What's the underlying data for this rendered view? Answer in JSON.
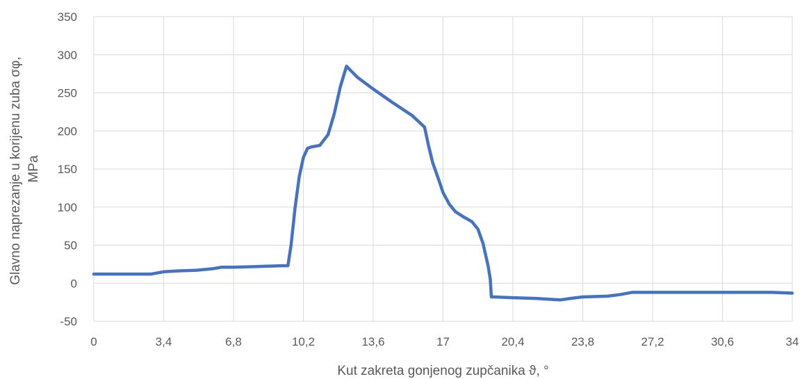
{
  "chart_data": {
    "type": "line",
    "title": "",
    "xlabel": "Kut zakreta gonjenog zupčanika ϑ, °",
    "ylabel_lines": [
      "Glavno naprezanje u korijenu zuba σφ,",
      "MPa"
    ],
    "xlim": [
      0,
      34
    ],
    "ylim": [
      -50,
      350
    ],
    "x_ticks": [
      0,
      3.4,
      6.8,
      10.2,
      13.6,
      17,
      20.4,
      23.8,
      27.2,
      30.6,
      34
    ],
    "x_tick_labels": [
      "0",
      "3,4",
      "6,8",
      "10,2",
      "13,6",
      "17",
      "20,4",
      "23,8",
      "27,2",
      "30,6",
      "34"
    ],
    "y_ticks": [
      -50,
      0,
      50,
      100,
      150,
      200,
      250,
      300,
      350
    ],
    "y_tick_labels": [
      "-50",
      "0",
      "50",
      "100",
      "150",
      "200",
      "250",
      "300",
      "350"
    ],
    "grid": true,
    "legend": "none",
    "series": [
      {
        "color": "#4472c4",
        "x": [
          0,
          1.0,
          2.0,
          2.8,
          3.4,
          4.0,
          5.0,
          5.8,
          6.2,
          6.8,
          8.0,
          9.2,
          9.45,
          9.6,
          9.8,
          10.0,
          10.2,
          10.4,
          10.6,
          11.0,
          11.4,
          11.7,
          12.0,
          12.3,
          12.55,
          12.85,
          13.6,
          14.5,
          15.5,
          16.1,
          16.3,
          16.5,
          16.8,
          17.0,
          17.3,
          17.6,
          18.0,
          18.4,
          18.7,
          18.95,
          19.2,
          19.3,
          19.35,
          19.5,
          20.4,
          21.5,
          22.7,
          23.2,
          23.8,
          25.0,
          25.6,
          26.2,
          27.2,
          30.6,
          31.6,
          33.0,
          34.0
        ],
        "y": [
          12,
          12,
          12,
          12,
          15,
          16,
          17,
          19,
          21,
          21,
          22,
          23,
          23,
          50,
          100,
          140,
          165,
          177,
          179,
          181,
          195,
          222,
          258,
          285,
          278,
          270,
          255,
          238,
          220,
          205,
          180,
          158,
          135,
          119,
          104,
          94,
          87,
          81,
          71,
          52,
          22,
          5,
          -18,
          -18,
          -19,
          -20,
          -22,
          -20,
          -18,
          -17,
          -15,
          -12,
          -12,
          -12,
          -12,
          -12,
          -13
        ]
      }
    ]
  }
}
